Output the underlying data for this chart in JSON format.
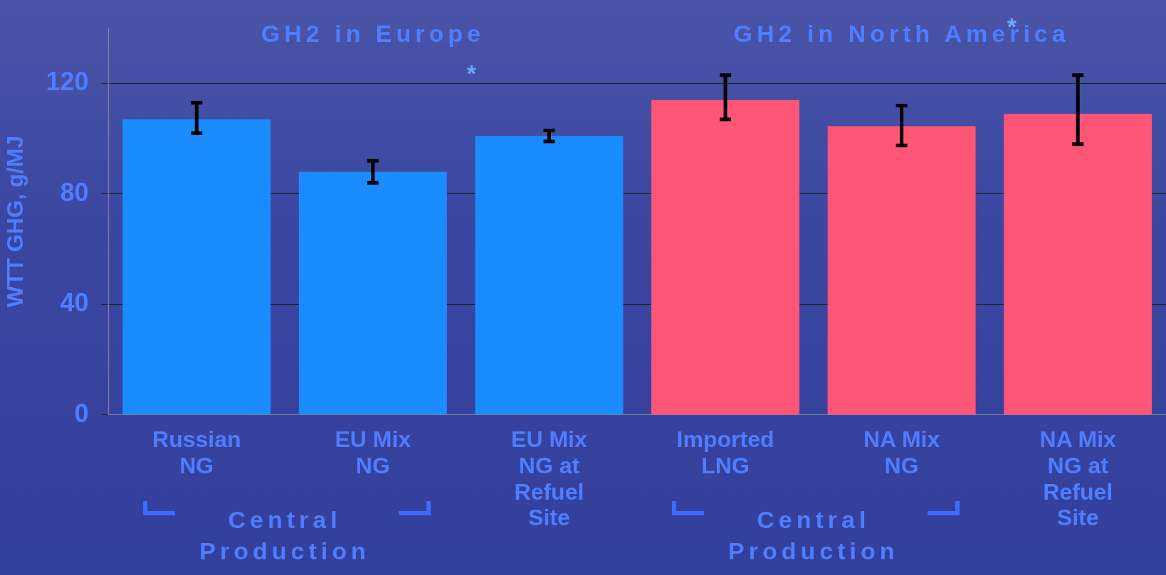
{
  "chart_data": {
    "type": "bar",
    "ylabel": "WTT GHG, g/MJ",
    "categories": [
      "Russian NG",
      "EU Mix NG",
      "EU Mix NG at Refuel Site",
      "Imported LNG",
      "NA Mix NG",
      "NA Mix NG at Refuel Site"
    ],
    "values": [
      107,
      88,
      101,
      114,
      104.5,
      109
    ],
    "colors": [
      "#1a8cff",
      "#1a8cff",
      "#1a8cff",
      "#ff5577",
      "#ff5577",
      "#ff5577"
    ],
    "errors": [
      [
        102,
        113
      ],
      [
        84,
        92
      ],
      [
        99,
        103
      ],
      [
        107,
        123
      ],
      [
        97.5,
        112
      ],
      [
        98,
        123
      ]
    ],
    "ylim": [
      0,
      140
    ],
    "yticks": [
      0,
      40,
      80,
      120
    ],
    "grid": "y",
    "legend": false,
    "annotations": [
      "GH2 in Europe",
      "GH2 in North America",
      "*",
      "*",
      "Central Production",
      "Central Production"
    ]
  }
}
